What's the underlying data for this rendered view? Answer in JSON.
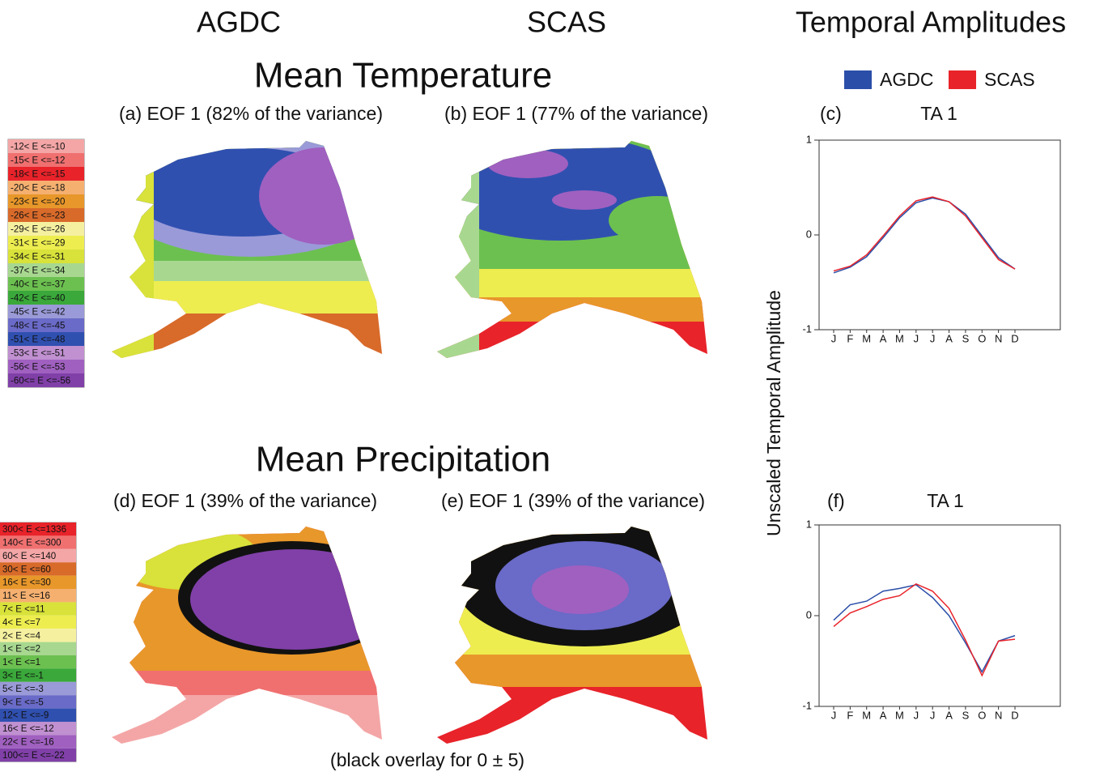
{
  "headers": [
    "AGDC",
    "SCAS",
    "Temporal Amplitudes"
  ],
  "temperature": {
    "title": "Mean Temperature",
    "panels": [
      "(a) EOF 1 (82% of the variance)",
      "(b) EOF 1 (77% of the variance)"
    ],
    "legend": [
      {
        "label": "-12<  E <=-10",
        "color": "#f4a6a6"
      },
      {
        "label": "-15<  E <=-12",
        "color": "#f07070"
      },
      {
        "label": "-18<  E <=-15",
        "color": "#e8232a"
      },
      {
        "label": "-20<  E <=-18",
        "color": "#f5b070"
      },
      {
        "label": "-23<  E <=-20",
        "color": "#e8972a"
      },
      {
        "label": "-26<  E <=-23",
        "color": "#d86a2a"
      },
      {
        "label": "-29<  E <=-26",
        "color": "#f5f0a0"
      },
      {
        "label": "-31<  E <=-29",
        "color": "#eded50"
      },
      {
        "label": "-34<  E <=-31",
        "color": "#d8e23a"
      },
      {
        "label": "-37<  E <=-34",
        "color": "#a8d890"
      },
      {
        "label": "-40<  E <=-37",
        "color": "#6cc050"
      },
      {
        "label": "-42<  E <=-40",
        "color": "#3aa83a"
      },
      {
        "label": "-45<  E <=-42",
        "color": "#9a9ad8"
      },
      {
        "label": "-48<  E <=-45",
        "color": "#6a6ac8"
      },
      {
        "label": "-51<  E <=-48",
        "color": "#3050b0"
      },
      {
        "label": "-53<  E <=-51",
        "color": "#c090d0"
      },
      {
        "label": "-56<  E <=-53",
        "color": "#a060c0"
      },
      {
        "label": "-60<= E <=-56",
        "color": "#8040a8"
      }
    ]
  },
  "precipitation": {
    "title": "Mean Precipitation",
    "panels": [
      "(d) EOF 1 (39% of the variance)",
      "(e) EOF 1 (39% of the variance)"
    ],
    "note": "(black overlay for 0 ± 5)",
    "legend": [
      {
        "label": "300<  E <=1336",
        "color": "#e8232a"
      },
      {
        "label": "140<  E <=300",
        "color": "#f07070"
      },
      {
        "label": "60<  E <=140",
        "color": "#f4a6a6"
      },
      {
        "label": "30<  E <=60",
        "color": "#d86a2a"
      },
      {
        "label": "16<  E <=30",
        "color": "#e8972a"
      },
      {
        "label": "11<  E <=16",
        "color": "#f5b070"
      },
      {
        "label": "7<  E <=11",
        "color": "#d8e23a"
      },
      {
        "label": "4<  E <=7",
        "color": "#eded50"
      },
      {
        "label": "2<  E <=4",
        "color": "#f5f0a0"
      },
      {
        "label": "1<  E <=2",
        "color": "#a8d890"
      },
      {
        "label": "1<  E <=1",
        "color": "#6cc050"
      },
      {
        "label": "3<  E <=-1",
        "color": "#3aa83a"
      },
      {
        "label": "5<  E <=-3",
        "color": "#9a9ad8"
      },
      {
        "label": "9<  E <=-5",
        "color": "#6a6ac8"
      },
      {
        "label": "12<  E <=-9",
        "color": "#3050b0"
      },
      {
        "label": "16<  E <=-12",
        "color": "#c090d0"
      },
      {
        "label": "22<  E <=-16",
        "color": "#a060c0"
      },
      {
        "label": "100<= E <=-22",
        "color": "#8040a8"
      }
    ]
  },
  "y_label": "Unscaled Temporal Amplitude",
  "chart_data": [
    {
      "type": "line",
      "panel": "(c)",
      "title": "TA 1",
      "categories": [
        "J",
        "F",
        "M",
        "A",
        "M",
        "J",
        "J",
        "A",
        "S",
        "O",
        "N",
        "D"
      ],
      "ylim": [
        -1,
        1
      ],
      "yticks": [
        -1,
        0,
        1
      ],
      "series": [
        {
          "name": "AGDC",
          "color": "#2b4ea8",
          "values": [
            -0.4,
            -0.34,
            -0.23,
            -0.03,
            0.18,
            0.34,
            0.39,
            0.35,
            0.22,
            -0.01,
            -0.24,
            -0.36
          ]
        },
        {
          "name": "SCAS",
          "color": "#e8232a",
          "values": [
            -0.38,
            -0.33,
            -0.21,
            -0.01,
            0.2,
            0.36,
            0.4,
            0.35,
            0.2,
            -0.03,
            -0.26,
            -0.36
          ]
        }
      ]
    },
    {
      "type": "line",
      "panel": "(f)",
      "title": "TA 1",
      "categories": [
        "J",
        "F",
        "M",
        "A",
        "M",
        "J",
        "J",
        "A",
        "S",
        "O",
        "N",
        "D"
      ],
      "ylim": [
        -1,
        1
      ],
      "yticks": [
        -1,
        0,
        1
      ],
      "series": [
        {
          "name": "AGDC",
          "color": "#2b4ea8",
          "values": [
            -0.05,
            0.12,
            0.16,
            0.27,
            0.3,
            0.34,
            0.2,
            0.0,
            -0.3,
            -0.62,
            -0.28,
            -0.22
          ]
        },
        {
          "name": "SCAS",
          "color": "#e8232a",
          "values": [
            -0.12,
            0.03,
            0.1,
            0.18,
            0.22,
            0.35,
            0.27,
            0.08,
            -0.27,
            -0.66,
            -0.28,
            -0.26
          ]
        }
      ]
    }
  ]
}
